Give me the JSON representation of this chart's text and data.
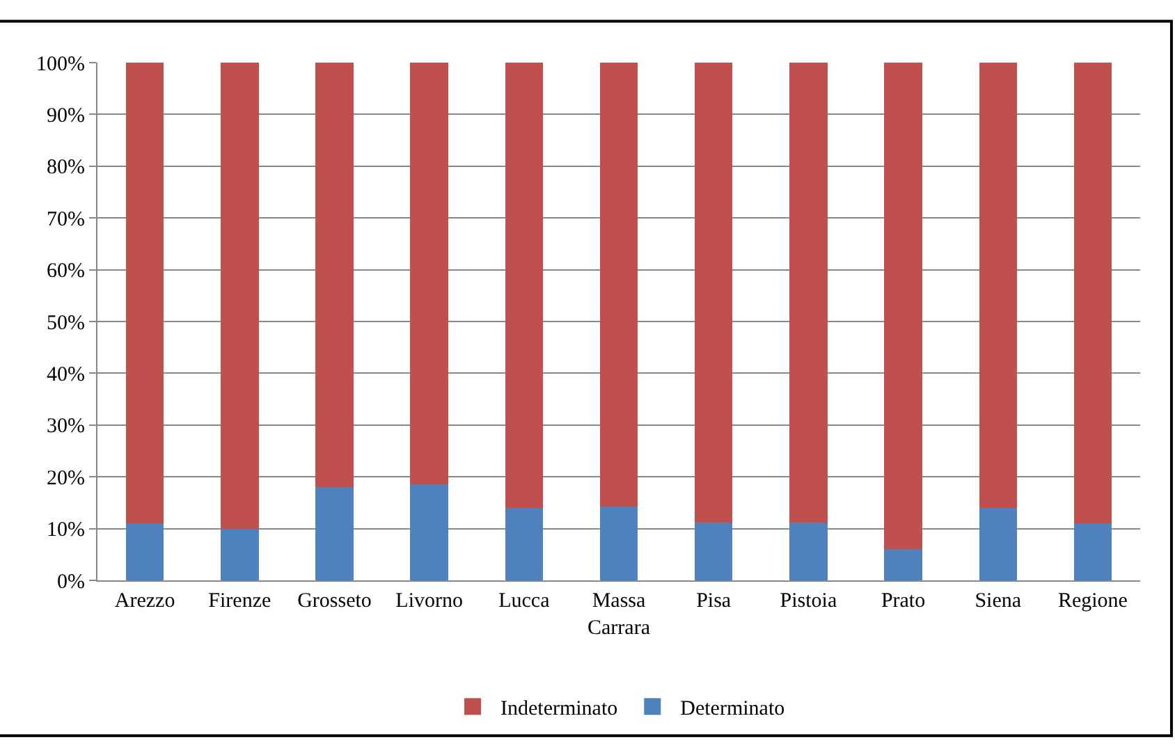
{
  "chart_data": {
    "type": "bar",
    "stacked": true,
    "categories": [
      "Arezzo",
      "Firenze",
      "Grosseto",
      "Livorno",
      "Lucca",
      "Massa Carrara",
      "Pisa",
      "Pistoia",
      "Prato",
      "Siena",
      "Regione"
    ],
    "series": [
      {
        "name": "Determinato",
        "color": "#4f81bd",
        "values": [
          11,
          10,
          18,
          18.5,
          14,
          14.3,
          11.2,
          11.2,
          6,
          14,
          11
        ]
      },
      {
        "name": "Indeterminato",
        "color": "#c0504d",
        "values": [
          89,
          90,
          82,
          81.5,
          86,
          85.7,
          88.8,
          88.8,
          94,
          86,
          89
        ]
      }
    ],
    "ylim": [
      0,
      100
    ],
    "yticks": [
      {
        "value": 0,
        "label": "0%"
      },
      {
        "value": 10,
        "label": "10%"
      },
      {
        "value": 20,
        "label": "20%"
      },
      {
        "value": 30,
        "label": "30%"
      },
      {
        "value": 40,
        "label": "40%"
      },
      {
        "value": 50,
        "label": "50%"
      },
      {
        "value": 60,
        "label": "60%"
      },
      {
        "value": 70,
        "label": "70%"
      },
      {
        "value": 80,
        "label": "80%"
      },
      {
        "value": 90,
        "label": "90%"
      },
      {
        "value": 100,
        "label": "100%"
      }
    ],
    "grid": "y",
    "legend": "bottom"
  }
}
